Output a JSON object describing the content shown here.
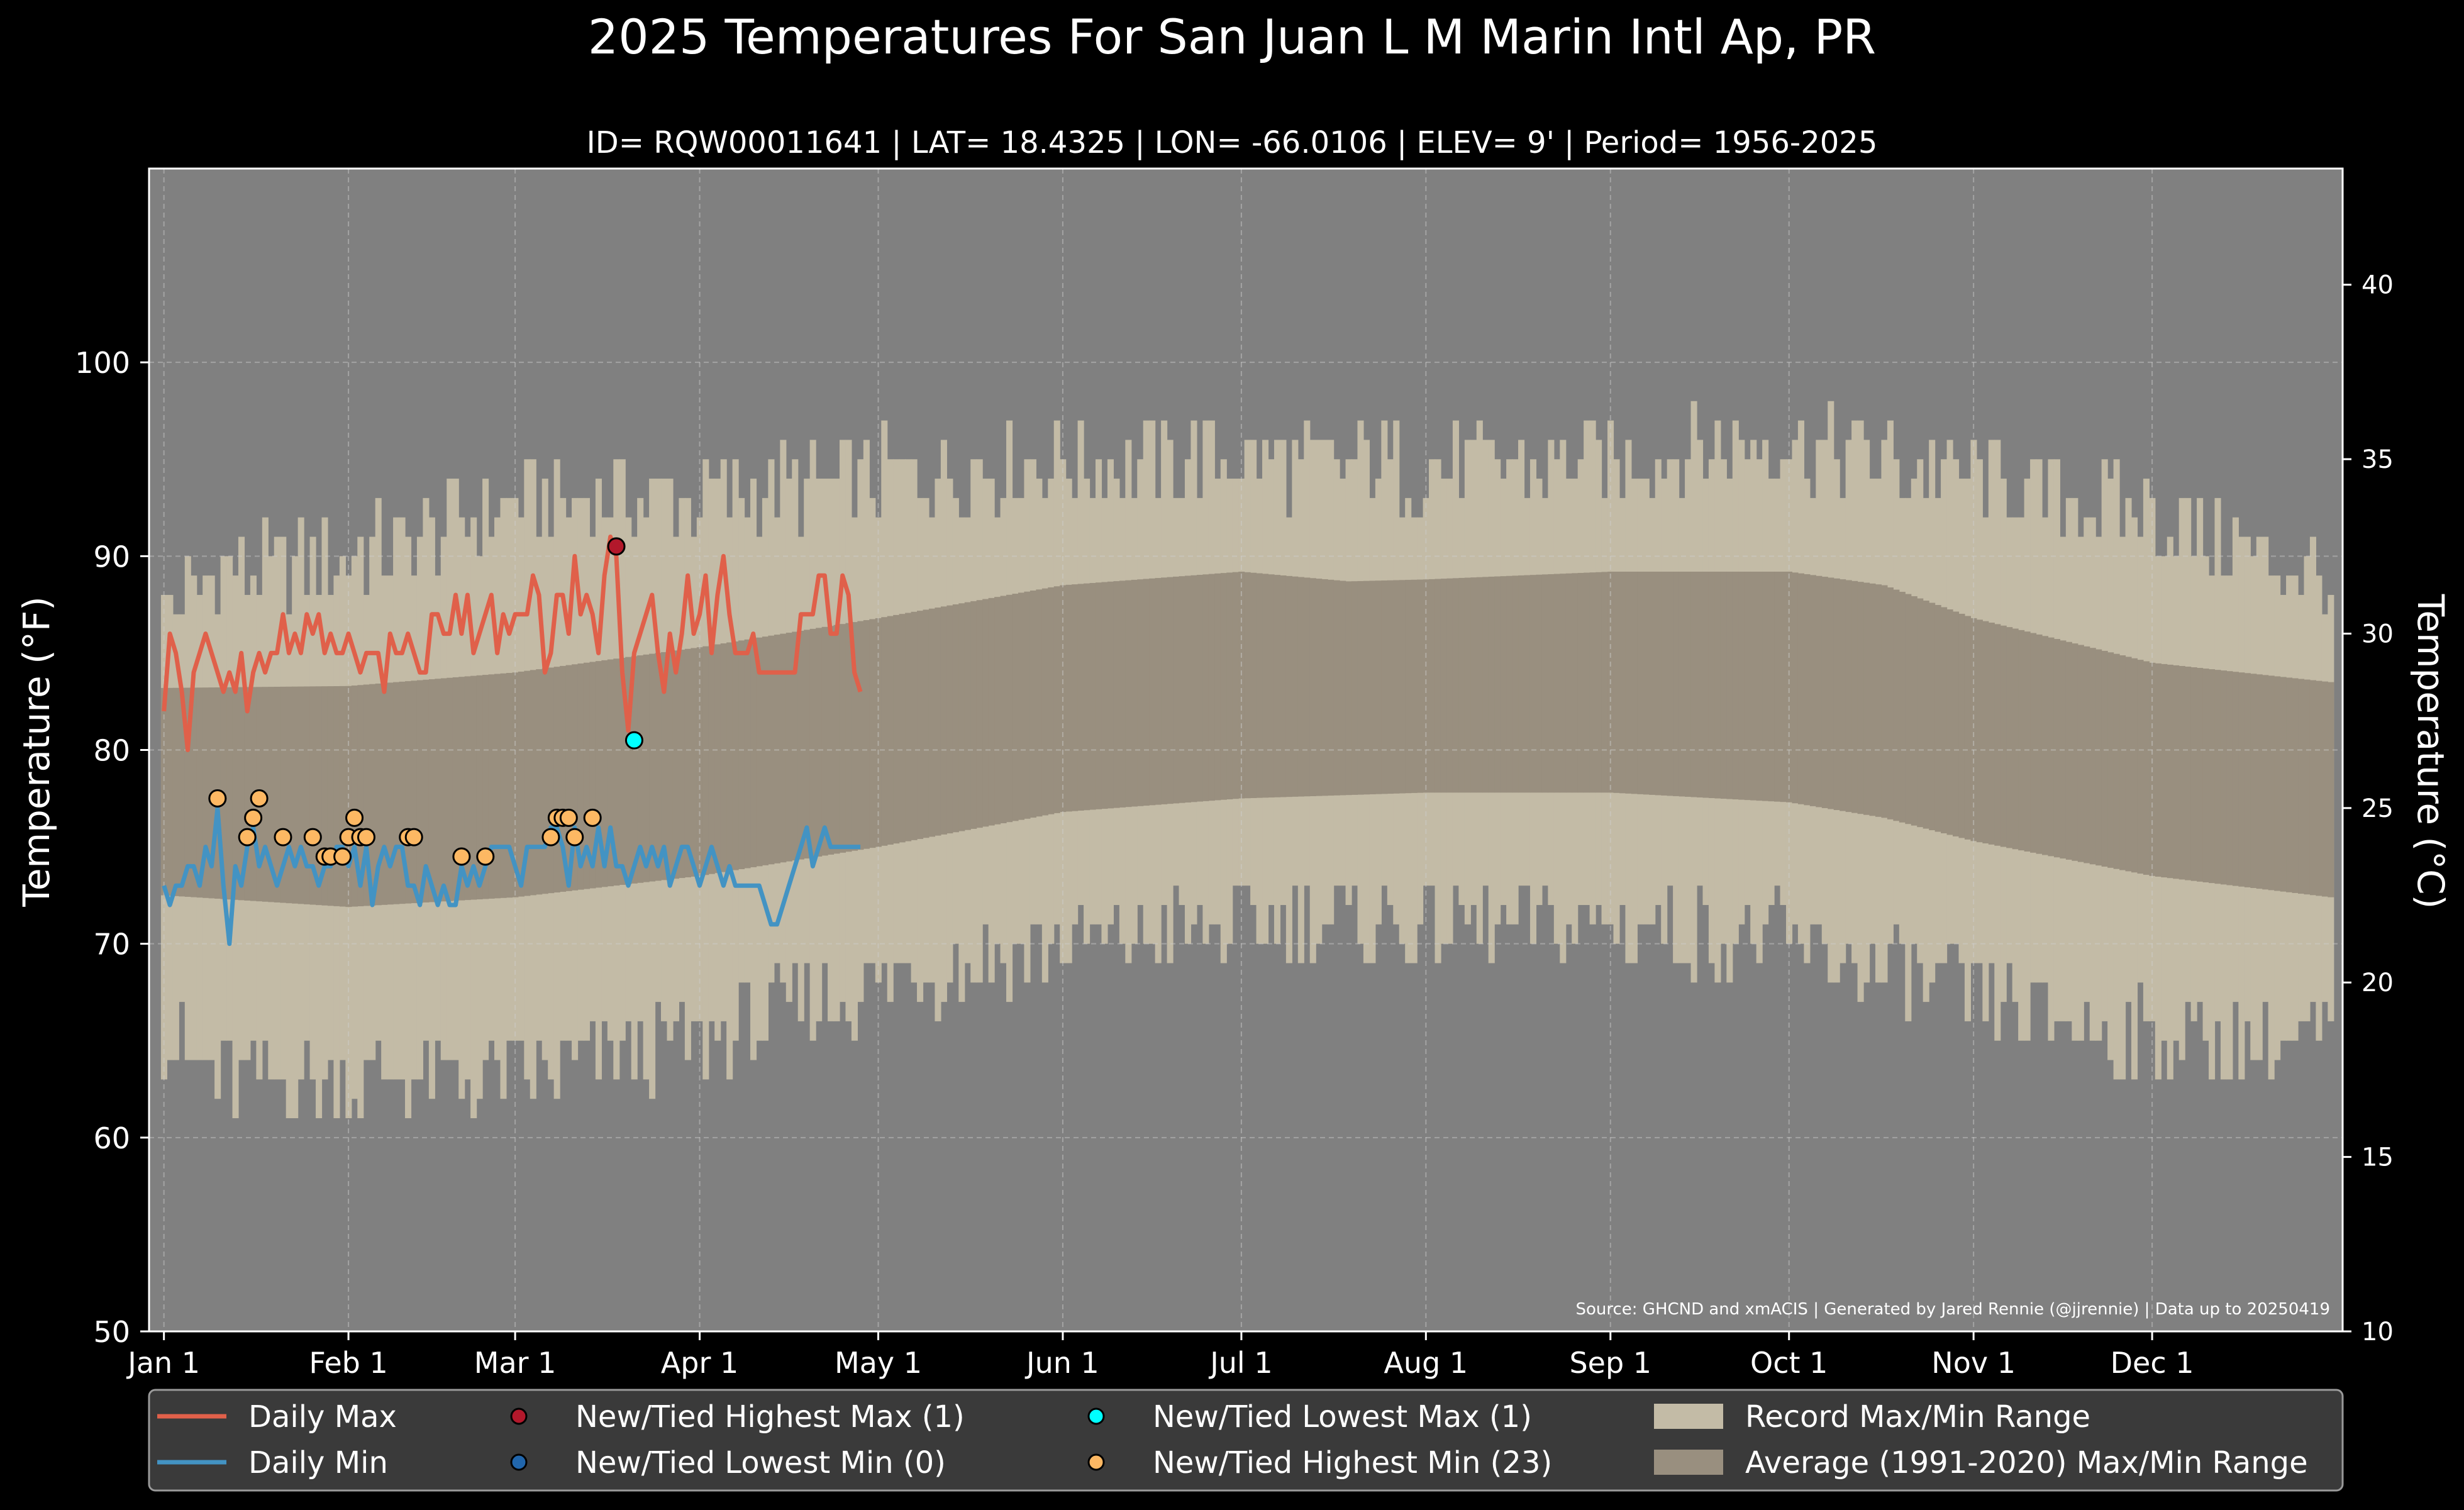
{
  "chart_data": {
    "type": "line",
    "title": "2025 Temperatures For San Juan L M Marin Intl Ap, PR",
    "subtitle": "ID= RQW00011641 | LAT= 18.4325 | LON= -66.0106 | ELEV= 9' | Period= 1956-2025",
    "ylabel_left": "Temperature ($^\\circ$F)",
    "ylabel_left_display": "Temperature (°F)",
    "ylabel_right_display": "Temperature (°C)",
    "ylim_f": [
      50,
      110
    ],
    "ylim_c": [
      10,
      43.33
    ],
    "yticks_f": [
      "50",
      "60",
      "70",
      "80",
      "90",
      "100"
    ],
    "yticks_c": [
      "10",
      "15",
      "20",
      "25",
      "30",
      "35",
      "40"
    ],
    "month_ticks": [
      {
        "label": "Jan 1",
        "day": 1
      },
      {
        "label": "Feb 1",
        "day": 32
      },
      {
        "label": "Mar 1",
        "day": 60
      },
      {
        "label": "Apr 1",
        "day": 91
      },
      {
        "label": "May 1",
        "day": 121
      },
      {
        "label": "Jun 1",
        "day": 152
      },
      {
        "label": "Jul 1",
        "day": 182
      },
      {
        "label": "Aug 1",
        "day": 213
      },
      {
        "label": "Sep 1",
        "day": 244
      },
      {
        "label": "Oct 1",
        "day": 274
      },
      {
        "label": "Nov 1",
        "day": 305
      },
      {
        "label": "Dec 1",
        "day": 335
      }
    ],
    "grid": true,
    "source_note": "Source: GHCND and xmACIS | Generated by Jared Rennie (@jjrennie) | Data up to 20250419",
    "legend_position": "bottom",
    "legend": [
      {
        "label": "Daily Max",
        "kind": "line",
        "color": "#e0604a"
      },
      {
        "label": "Daily Min",
        "kind": "line",
        "color": "#4393c3"
      },
      {
        "label": "New/Tied Highest Max (1)",
        "kind": "dot",
        "color": "#b2182b"
      },
      {
        "label": "New/Tied Lowest Min (0)",
        "kind": "dot",
        "color": "#2166ac"
      },
      {
        "label": "New/Tied Lowest Max (1)",
        "kind": "dot",
        "color": "#00ffff"
      },
      {
        "label": "New/Tied Highest Min (23)",
        "kind": "dot",
        "color": "#fdb863"
      },
      {
        "label": "Record Max/Min Range",
        "kind": "patch",
        "color": "#c3bba6"
      },
      {
        "label": "Average (1991-2020) Max/Min Range",
        "kind": "patch",
        "color": "#998f7f"
      }
    ],
    "colors": {
      "background": "#000000",
      "plot_bg": "#808080",
      "record_range": "#c3bba6",
      "normal_range": "#998f7f",
      "daily_max": "#e0604a",
      "daily_min": "#4393c3",
      "legend_bg": "#3a3a3a"
    },
    "normal_max_keypoints": [
      [
        1,
        83.2
      ],
      [
        32,
        83.3
      ],
      [
        60,
        84.0
      ],
      [
        91,
        85.3
      ],
      [
        121,
        86.8
      ],
      [
        152,
        88.5
      ],
      [
        182,
        89.2
      ],
      [
        200,
        88.7
      ],
      [
        213,
        88.8
      ],
      [
        244,
        89.2
      ],
      [
        274,
        89.2
      ],
      [
        290,
        88.5
      ],
      [
        305,
        86.8
      ],
      [
        335,
        84.5
      ],
      [
        365,
        83.5
      ]
    ],
    "normal_min_keypoints": [
      [
        1,
        72.5
      ],
      [
        32,
        71.9
      ],
      [
        60,
        72.4
      ],
      [
        91,
        73.5
      ],
      [
        121,
        75.0
      ],
      [
        152,
        76.8
      ],
      [
        182,
        77.5
      ],
      [
        213,
        77.8
      ],
      [
        244,
        77.8
      ],
      [
        274,
        77.3
      ],
      [
        290,
        76.5
      ],
      [
        305,
        75.3
      ],
      [
        335,
        73.5
      ],
      [
        365,
        72.4
      ]
    ],
    "record_max_keypoints": [
      [
        1,
        87
      ],
      [
        10,
        89
      ],
      [
        32,
        90
      ],
      [
        45,
        91
      ],
      [
        60,
        93
      ],
      [
        91,
        93
      ],
      [
        121,
        94
      ],
      [
        152,
        95
      ],
      [
        182,
        95
      ],
      [
        213,
        94.5
      ],
      [
        244,
        95
      ],
      [
        274,
        96
      ],
      [
        305,
        94
      ],
      [
        335,
        92
      ],
      [
        365,
        89
      ]
    ],
    "record_min_keypoints": [
      [
        1,
        65
      ],
      [
        10,
        63
      ],
      [
        32,
        63
      ],
      [
        45,
        63
      ],
      [
        60,
        63
      ],
      [
        91,
        65
      ],
      [
        121,
        68
      ],
      [
        152,
        70
      ],
      [
        182,
        71
      ],
      [
        213,
        71
      ],
      [
        244,
        71
      ],
      [
        274,
        70
      ],
      [
        305,
        67
      ],
      [
        335,
        65
      ],
      [
        365,
        65
      ]
    ],
    "daily_max": [
      82,
      86,
      85,
      83,
      80,
      84,
      85,
      86,
      85,
      84,
      83,
      84,
      83,
      85,
      82,
      84,
      85,
      84,
      85,
      85,
      87,
      85,
      86,
      85,
      87,
      86,
      87,
      85,
      86,
      85,
      85,
      86,
      85,
      84,
      85,
      85,
      85,
      83,
      86,
      85,
      85,
      86,
      85,
      84,
      84,
      87,
      87,
      86,
      86,
      88,
      86,
      88,
      85,
      86,
      87,
      88,
      85,
      87,
      86,
      87,
      87,
      87,
      89,
      88,
      84,
      85,
      88,
      88,
      86,
      90,
      87,
      88,
      87,
      85,
      89,
      91,
      90,
      84,
      81,
      85,
      86,
      87,
      88,
      85,
      83,
      86,
      84,
      86,
      89,
      86,
      87,
      89,
      85,
      88,
      90,
      87,
      85,
      85,
      85,
      86,
      84,
      84,
      84,
      84,
      84,
      84,
      84,
      87,
      87,
      87,
      89,
      89,
      86,
      86,
      89,
      88,
      84,
      83
    ],
    "daily_min": [
      73,
      72,
      73,
      73,
      74,
      74,
      73,
      75,
      74,
      77,
      73,
      70,
      74,
      73,
      75,
      76,
      74,
      75,
      74,
      73,
      74,
      75,
      74,
      75,
      74,
      74,
      73,
      74,
      74,
      75,
      75,
      74,
      75,
      73,
      75,
      72,
      74,
      75,
      74,
      75,
      75,
      73,
      73,
      72,
      74,
      73,
      72,
      73,
      72,
      72,
      74,
      73,
      74,
      73,
      74,
      75,
      75,
      75,
      75,
      74,
      73,
      75,
      75,
      75,
      75,
      76,
      76,
      75,
      73,
      76,
      74,
      75,
      74,
      76,
      74,
      76,
      74,
      74,
      73,
      74,
      75,
      74,
      75,
      74,
      75,
      73,
      74,
      75,
      75,
      74,
      73,
      74,
      75,
      74,
      73,
      74,
      73,
      73,
      73,
      73,
      73,
      72,
      71,
      71,
      72,
      73,
      74,
      75,
      76,
      74,
      75,
      76,
      75,
      75,
      75,
      75,
      75,
      75
    ],
    "new_highest_max": [
      {
        "day": 77,
        "value": 90.5
      }
    ],
    "new_lowest_max": [
      {
        "day": 80,
        "value": 80.5
      }
    ],
    "new_lowest_min": [],
    "new_highest_min": [
      {
        "day": 10,
        "value": 77.5
      },
      {
        "day": 15,
        "value": 75.5
      },
      {
        "day": 16,
        "value": 76.5
      },
      {
        "day": 17,
        "value": 77.5
      },
      {
        "day": 21,
        "value": 75.5
      },
      {
        "day": 26,
        "value": 75.5
      },
      {
        "day": 28,
        "value": 74.5
      },
      {
        "day": 29,
        "value": 74.5
      },
      {
        "day": 31,
        "value": 74.5
      },
      {
        "day": 32,
        "value": 75.5
      },
      {
        "day": 33,
        "value": 76.5
      },
      {
        "day": 34,
        "value": 75.5
      },
      {
        "day": 35,
        "value": 75.5
      },
      {
        "day": 42,
        "value": 75.5
      },
      {
        "day": 43,
        "value": 75.5
      },
      {
        "day": 51,
        "value": 74.5
      },
      {
        "day": 55,
        "value": 74.5
      },
      {
        "day": 66,
        "value": 75.5
      },
      {
        "day": 67,
        "value": 76.5
      },
      {
        "day": 68,
        "value": 76.5
      },
      {
        "day": 69,
        "value": 76.5
      },
      {
        "day": 70,
        "value": 75.5
      },
      {
        "day": 73,
        "value": 76.5
      }
    ]
  }
}
